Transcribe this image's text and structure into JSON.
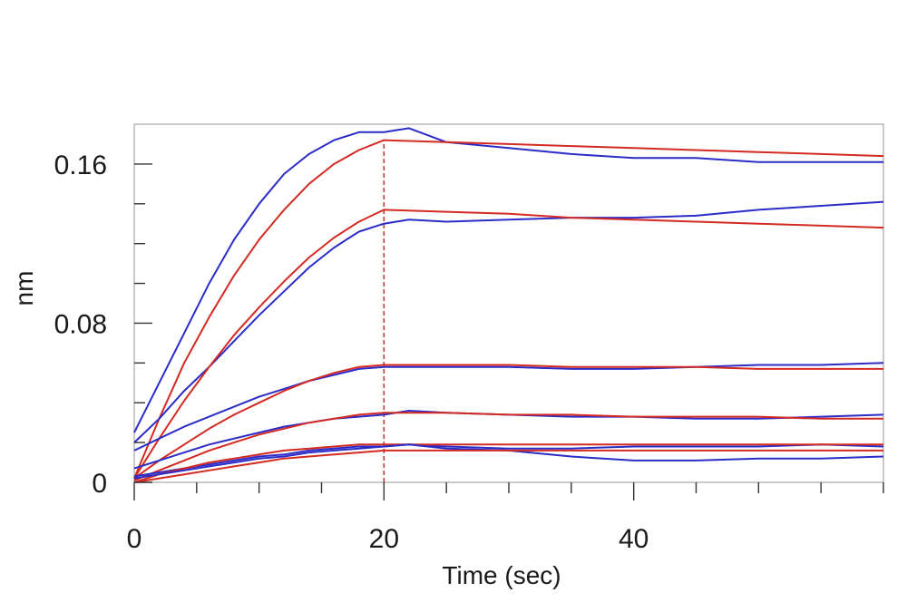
{
  "chart_data": {
    "type": "line",
    "xlabel": "Time (sec)",
    "ylabel": "nm",
    "xlim": [
      0,
      60
    ],
    "ylim": [
      0,
      0.18
    ],
    "xticks": [
      0,
      20,
      40
    ],
    "yticks": [
      0,
      0.08,
      0.16
    ],
    "xtick_labels": [
      "0",
      "20",
      "40"
    ],
    "ytick_labels": [
      "0",
      "0.08",
      "0.16"
    ],
    "dissociation_start": 20,
    "grid": false,
    "legend": "none",
    "colors": {
      "observed": "#2b2bc8",
      "fit": "#d42a22",
      "marker_line": "#c0392b",
      "frame": "#b8b8b8"
    },
    "series": [
      {
        "role": "observed",
        "x": [
          0,
          2,
          4,
          6,
          8,
          10,
          12,
          14,
          16,
          18,
          20,
          22,
          25,
          30,
          35,
          40,
          45,
          50,
          55,
          60
        ],
        "y": [
          0.025,
          0.05,
          0.075,
          0.1,
          0.122,
          0.14,
          0.155,
          0.165,
          0.172,
          0.176,
          0.176,
          0.178,
          0.171,
          0.168,
          0.165,
          0.163,
          0.163,
          0.161,
          0.161,
          0.161
        ]
      },
      {
        "role": "fit",
        "x": [
          0,
          2,
          4,
          6,
          8,
          10,
          12,
          14,
          16,
          18,
          20,
          25,
          30,
          35,
          40,
          45,
          50,
          55,
          60
        ],
        "y": [
          0.002,
          0.032,
          0.06,
          0.083,
          0.104,
          0.122,
          0.137,
          0.15,
          0.16,
          0.167,
          0.172,
          0.171,
          0.17,
          0.169,
          0.168,
          0.167,
          0.166,
          0.165,
          0.164
        ]
      },
      {
        "role": "observed",
        "x": [
          0,
          2,
          4,
          6,
          8,
          10,
          12,
          14,
          16,
          18,
          20,
          22,
          25,
          30,
          35,
          40,
          45,
          50,
          55,
          60
        ],
        "y": [
          0.02,
          0.032,
          0.046,
          0.058,
          0.071,
          0.084,
          0.096,
          0.108,
          0.118,
          0.126,
          0.13,
          0.132,
          0.131,
          0.132,
          0.133,
          0.133,
          0.134,
          0.137,
          0.139,
          0.141
        ]
      },
      {
        "role": "fit",
        "x": [
          0,
          2,
          4,
          6,
          8,
          10,
          12,
          14,
          16,
          18,
          20,
          25,
          30,
          35,
          40,
          45,
          50,
          55,
          60
        ],
        "y": [
          0.002,
          0.022,
          0.041,
          0.058,
          0.074,
          0.088,
          0.101,
          0.113,
          0.123,
          0.131,
          0.137,
          0.136,
          0.135,
          0.133,
          0.132,
          0.131,
          0.13,
          0.129,
          0.128
        ]
      },
      {
        "role": "observed",
        "x": [
          0,
          2,
          4,
          6,
          8,
          10,
          12,
          14,
          16,
          18,
          20,
          25,
          30,
          35,
          40,
          45,
          50,
          55,
          60
        ],
        "y": [
          0.016,
          0.022,
          0.028,
          0.033,
          0.038,
          0.043,
          0.047,
          0.051,
          0.054,
          0.057,
          0.058,
          0.058,
          0.058,
          0.057,
          0.057,
          0.058,
          0.059,
          0.059,
          0.06
        ]
      },
      {
        "role": "fit",
        "x": [
          0,
          2,
          4,
          6,
          8,
          10,
          12,
          14,
          16,
          18,
          20,
          25,
          30,
          35,
          40,
          45,
          50,
          55,
          60
        ],
        "y": [
          0.002,
          0.011,
          0.019,
          0.027,
          0.034,
          0.04,
          0.046,
          0.051,
          0.055,
          0.058,
          0.059,
          0.059,
          0.059,
          0.058,
          0.058,
          0.058,
          0.057,
          0.057,
          0.057
        ]
      },
      {
        "role": "observed",
        "x": [
          0,
          2,
          4,
          6,
          8,
          10,
          12,
          14,
          16,
          18,
          20,
          22,
          25,
          30,
          35,
          40,
          45,
          50,
          55,
          60
        ],
        "y": [
          0.007,
          0.011,
          0.015,
          0.019,
          0.022,
          0.025,
          0.028,
          0.03,
          0.032,
          0.033,
          0.034,
          0.036,
          0.035,
          0.034,
          0.033,
          0.033,
          0.032,
          0.032,
          0.033,
          0.034
        ]
      },
      {
        "role": "fit",
        "x": [
          0,
          2,
          4,
          6,
          8,
          10,
          12,
          14,
          16,
          18,
          20,
          25,
          30,
          35,
          40,
          45,
          50,
          55,
          60
        ],
        "y": [
          0.001,
          0.006,
          0.011,
          0.016,
          0.02,
          0.024,
          0.027,
          0.03,
          0.032,
          0.034,
          0.035,
          0.035,
          0.034,
          0.034,
          0.033,
          0.033,
          0.033,
          0.032,
          0.032
        ]
      },
      {
        "role": "observed",
        "x": [
          0,
          2,
          4,
          6,
          8,
          10,
          12,
          14,
          16,
          18,
          20,
          22,
          25,
          30,
          35,
          40,
          45,
          50,
          55,
          60
        ],
        "y": [
          0.003,
          0.005,
          0.007,
          0.009,
          0.011,
          0.013,
          0.014,
          0.016,
          0.017,
          0.018,
          0.018,
          0.019,
          0.018,
          0.017,
          0.017,
          0.018,
          0.018,
          0.018,
          0.019,
          0.018
        ]
      },
      {
        "role": "fit",
        "x": [
          0,
          2,
          4,
          6,
          8,
          10,
          12,
          14,
          16,
          18,
          20,
          25,
          30,
          35,
          40,
          45,
          50,
          55,
          60
        ],
        "y": [
          0.0,
          0.004,
          0.007,
          0.01,
          0.012,
          0.014,
          0.016,
          0.017,
          0.018,
          0.019,
          0.019,
          0.019,
          0.019,
          0.019,
          0.019,
          0.019,
          0.019,
          0.019,
          0.019
        ]
      },
      {
        "role": "observed",
        "x": [
          0,
          2,
          4,
          6,
          8,
          10,
          12,
          14,
          16,
          18,
          20,
          22,
          25,
          30,
          35,
          40,
          45,
          50,
          55,
          60
        ],
        "y": [
          0.002,
          0.004,
          0.006,
          0.008,
          0.01,
          0.012,
          0.013,
          0.015,
          0.016,
          0.017,
          0.018,
          0.019,
          0.017,
          0.016,
          0.013,
          0.011,
          0.011,
          0.012,
          0.012,
          0.013
        ]
      },
      {
        "role": "fit",
        "x": [
          0,
          2,
          4,
          6,
          8,
          10,
          12,
          14,
          16,
          18,
          20,
          25,
          30,
          35,
          40,
          45,
          50,
          55,
          60
        ],
        "y": [
          0.0,
          0.002,
          0.004,
          0.006,
          0.008,
          0.01,
          0.012,
          0.013,
          0.014,
          0.015,
          0.016,
          0.016,
          0.016,
          0.016,
          0.016,
          0.016,
          0.016,
          0.016,
          0.016
        ]
      }
    ]
  }
}
